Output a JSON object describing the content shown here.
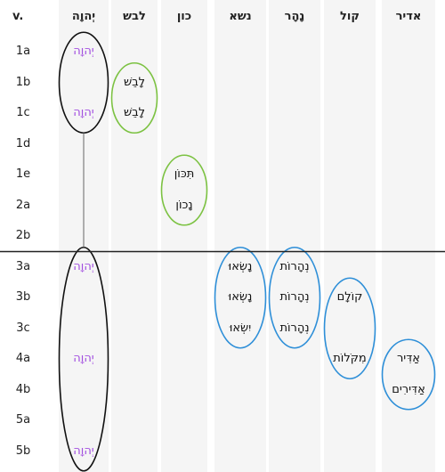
{
  "header": {
    "verse_label": "v.",
    "columns": [
      "יְהוָה",
      "לבש",
      "כון",
      "נשא",
      "נָהָר",
      "קול",
      "אדיר"
    ]
  },
  "verses": [
    "1a",
    "1b",
    "1c",
    "1d",
    "1e",
    "2a",
    "2b",
    "3a",
    "3b",
    "3c",
    "4a",
    "4b",
    "5a",
    "5b"
  ],
  "words": [
    {
      "col": 0,
      "row": 0,
      "text": "יְהוָה",
      "divine": true
    },
    {
      "col": 0,
      "row": 2,
      "text": "יְהוָה",
      "divine": true
    },
    {
      "col": 0,
      "row": 7,
      "text": "יְהוָה",
      "divine": true
    },
    {
      "col": 0,
      "row": 10,
      "text": "יְהוָה",
      "divine": true
    },
    {
      "col": 0,
      "row": 13,
      "text": "יְהוָה",
      "divine": true
    },
    {
      "col": 1,
      "row": 1,
      "text": "לָבֵשׁ"
    },
    {
      "col": 1,
      "row": 2,
      "text": "לָבֵשׁ"
    },
    {
      "col": 2,
      "row": 4,
      "text": "תִּכּוֹן"
    },
    {
      "col": 2,
      "row": 5,
      "text": "נָכוֹן"
    },
    {
      "col": 3,
      "row": 7,
      "text": "נָשְׂאוּ"
    },
    {
      "col": 3,
      "row": 8,
      "text": "נָשְׂאוּ"
    },
    {
      "col": 3,
      "row": 9,
      "text": "יִשְׂאוּ"
    },
    {
      "col": 4,
      "row": 7,
      "text": "נְהָרוֹת"
    },
    {
      "col": 4,
      "row": 8,
      "text": "נְהָרוֹת"
    },
    {
      "col": 4,
      "row": 9,
      "text": "נְהָרוֹת"
    },
    {
      "col": 5,
      "row": 8,
      "text": "קוֹלָם"
    },
    {
      "col": 5,
      "row": 10,
      "text": "מִקֹּלוֹת"
    },
    {
      "col": 6,
      "row": 10,
      "text": "אַדִּיר"
    },
    {
      "col": 6,
      "row": 11,
      "text": "אַדִּירִים"
    }
  ],
  "groups": [
    {
      "col": 0,
      "from": 0,
      "to": 2,
      "color": "#111111"
    },
    {
      "col": 0,
      "from": 7,
      "to": 13,
      "color": "#111111"
    },
    {
      "col": 1,
      "from": 1,
      "to": 2,
      "color": "#7cc242"
    },
    {
      "col": 2,
      "from": 4,
      "to": 5,
      "color": "#7cc242"
    },
    {
      "col": 3,
      "from": 7,
      "to": 9,
      "color": "#2e8fd8"
    },
    {
      "col": 4,
      "from": 7,
      "to": 9,
      "color": "#2e8fd8"
    },
    {
      "col": 5,
      "from": 8,
      "to": 10,
      "color": "#2e8fd8"
    },
    {
      "col": 6,
      "from": 10,
      "to": 11,
      "color": "#2e8fd8"
    }
  ],
  "connector": {
    "col": 0,
    "from_group": 0,
    "to_group": 1,
    "color": "#666666"
  },
  "divider_after_row": 6
}
